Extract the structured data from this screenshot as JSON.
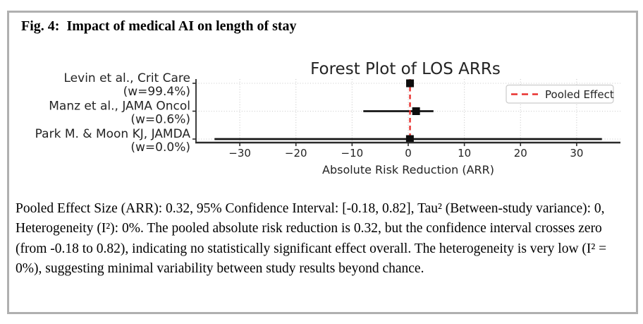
{
  "figure": {
    "label": "Fig. 4:",
    "title": "Impact of medical AI on length of stay"
  },
  "chart_data": {
    "type": "forest",
    "title": "Forest Plot of LOS ARRs",
    "xlabel": "Absolute Risk Reduction (ARR)",
    "x_ticks": [
      -30,
      -20,
      -10,
      0,
      10,
      20,
      30
    ],
    "xlim": [
      -37.8,
      37.8
    ],
    "grid": true,
    "legend": {
      "label": "Pooled Effect",
      "position": "upper right"
    },
    "pooled_effect": {
      "arr": 0.32,
      "ci": [
        -0.18,
        0.82
      ],
      "tau2": 0,
      "i2_pct": 0
    },
    "studies": [
      {
        "label": "Levin et al., Crit Care",
        "weight_label": "(w=99.4%)",
        "weight_pct": 99.4,
        "arr": 0.32,
        "ci": [
          -0.18,
          0.82
        ]
      },
      {
        "label": "Manz et al., JAMA Oncol",
        "weight_label": "(w=0.6%)",
        "weight_pct": 0.6,
        "arr": 1.4,
        "ci": [
          -8.0,
          4.5
        ]
      },
      {
        "label": "Park M. & Moon KJ, JAMDA",
        "weight_label": "(w=0.0%)",
        "weight_pct": 0.0,
        "arr": 0.3,
        "ci": [
          -34.5,
          34.5
        ]
      }
    ],
    "style": {
      "pooled_line_color": "#e8302e",
      "marker_color": "#0d0d0d",
      "ci_color": "#151515",
      "text_color": "#242424",
      "grid_color": "#c8c8c8",
      "spine_color": "#2b2b2b",
      "legend_border_color": "#cccccc"
    }
  },
  "caption": {
    "text": "Pooled Effect Size (ARR): 0.32, 95% Confidence Interval: [-0.18, 0.82], Tau² (Between-study variance): 0, Heterogeneity (I²): 0%. The pooled absolute risk reduction is 0.32, but the confidence interval crosses zero (from -0.18 to 0.82), indicating no statistically significant effect overall. The heterogeneity is very low (I² = 0%), suggesting minimal variability between study results beyond chance."
  },
  "colors": {
    "panel_border": "#b0b0b0",
    "background": "#ffffff"
  }
}
